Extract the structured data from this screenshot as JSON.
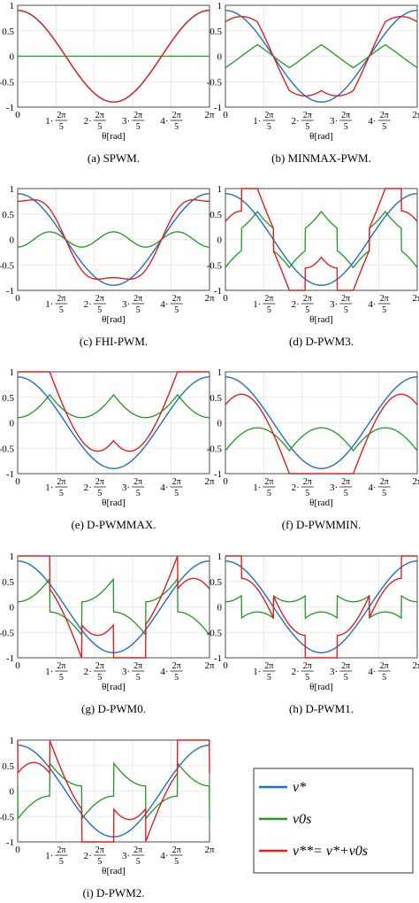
{
  "theta_label": "θ[rad]",
  "y_ticks": [
    "1",
    "0.5",
    "0",
    "-0.5",
    "-1"
  ],
  "x_ticks": [
    {
      "coef": "0",
      "frac": false
    },
    {
      "coef": "1·",
      "frac": true
    },
    {
      "coef": "2·",
      "frac": true
    },
    {
      "coef": "3·",
      "frac": true
    },
    {
      "coef": "4·",
      "frac": true
    },
    {
      "coef": "2π",
      "frac": false
    }
  ],
  "x_tick_num": "2π",
  "x_tick_den": "5",
  "legend": {
    "v_star": "v*",
    "v0s": "v0s",
    "v_star_star": "v**= v*+v0s"
  },
  "colors": {
    "v_star": "#1f6fc0",
    "v0s": "#1d9a1d",
    "v_star_star": "#e0201e"
  },
  "chart_data": [
    {
      "type": "line",
      "caption": "(a) SPWM.",
      "method": "spwm",
      "ylim": [
        -1,
        1
      ],
      "xlim": [
        0,
        6.2832
      ],
      "grid": true,
      "series": [
        {
          "name": "v*",
          "values": "0.9*cos(θ)"
        },
        {
          "name": "v0s",
          "values": "0"
        },
        {
          "name": "v**",
          "values": "v* + v0s"
        }
      ]
    },
    {
      "type": "line",
      "caption": "(b) MINMAX-PWM.",
      "method": "minmax",
      "ylim": [
        -1,
        1
      ],
      "xlim": [
        0,
        6.2832
      ],
      "grid": true,
      "series": [
        {
          "name": "v*",
          "values": "0.9*cos(θ)"
        },
        {
          "name": "v0s",
          "values": "-(max+min)/2"
        },
        {
          "name": "v**",
          "values": "v* + v0s"
        }
      ]
    },
    {
      "type": "line",
      "caption": "(c) FHI-PWM.",
      "method": "fhi",
      "ylim": [
        -1,
        1
      ],
      "xlim": [
        0,
        6.2832
      ],
      "grid": true,
      "series": [
        {
          "name": "v*",
          "values": "0.9*cos(θ)"
        },
        {
          "name": "v0s",
          "values": "-0.15*cos(5θ)"
        },
        {
          "name": "v**",
          "values": "v* + v0s"
        }
      ]
    },
    {
      "type": "line",
      "caption": "(d) D-PWM3.",
      "method": "dpwm3",
      "ylim": [
        -1,
        1
      ],
      "xlim": [
        0,
        6.2832
      ],
      "grid": true,
      "series": [
        {
          "name": "v*",
          "values": "0.9*cos(θ)"
        },
        {
          "name": "v0s",
          "values": "sign(v_mid) - v_mid"
        },
        {
          "name": "v**",
          "values": "v* + v0s"
        }
      ]
    },
    {
      "type": "line",
      "caption": "(e) D-PWMMAX.",
      "method": "dpwmmax",
      "ylim": [
        -1,
        1
      ],
      "xlim": [
        0,
        6.2832
      ],
      "grid": true,
      "series": [
        {
          "name": "v*",
          "values": "0.9*cos(θ)"
        },
        {
          "name": "v0s",
          "values": "1 - max"
        },
        {
          "name": "v**",
          "values": "v* + v0s"
        }
      ]
    },
    {
      "type": "line",
      "caption": "(f) D-PWMMIN.",
      "method": "dpwmmin",
      "ylim": [
        -1,
        1
      ],
      "xlim": [
        0,
        6.2832
      ],
      "grid": true,
      "series": [
        {
          "name": "v*",
          "values": "0.9*cos(θ)"
        },
        {
          "name": "v0s",
          "values": "-1 - min"
        },
        {
          "name": "v**",
          "values": "v* + v0s"
        }
      ]
    },
    {
      "type": "line",
      "caption": "(g) D-PWM0.",
      "method": "dpwm0",
      "ylim": [
        -1,
        1
      ],
      "xlim": [
        0,
        6.2832
      ],
      "grid": true,
      "series": [
        {
          "name": "v*",
          "values": "0.9*cos(θ)"
        },
        {
          "name": "v0s",
          "values": "clamp phase shifted 0"
        },
        {
          "name": "v**",
          "values": "v* + v0s"
        }
      ]
    },
    {
      "type": "line",
      "caption": "(h) D-PWM1.",
      "method": "dpwm1",
      "ylim": [
        -1,
        1
      ],
      "xlim": [
        0,
        6.2832
      ],
      "grid": true,
      "series": [
        {
          "name": "v*",
          "values": "0.9*cos(θ)"
        },
        {
          "name": "v0s",
          "values": "clamp largest magnitude"
        },
        {
          "name": "v**",
          "values": "v* + v0s"
        }
      ]
    },
    {
      "type": "line",
      "caption": "(i) D-PWM2.",
      "method": "dpwm2",
      "ylim": [
        -1,
        1
      ],
      "xlim": [
        0,
        6.2832
      ],
      "grid": true,
      "series": [
        {
          "name": "v*",
          "values": "0.9*cos(θ)"
        },
        {
          "name": "v0s",
          "values": "clamp phase shifted"
        },
        {
          "name": "v**",
          "values": "v* + v0s"
        }
      ]
    }
  ]
}
